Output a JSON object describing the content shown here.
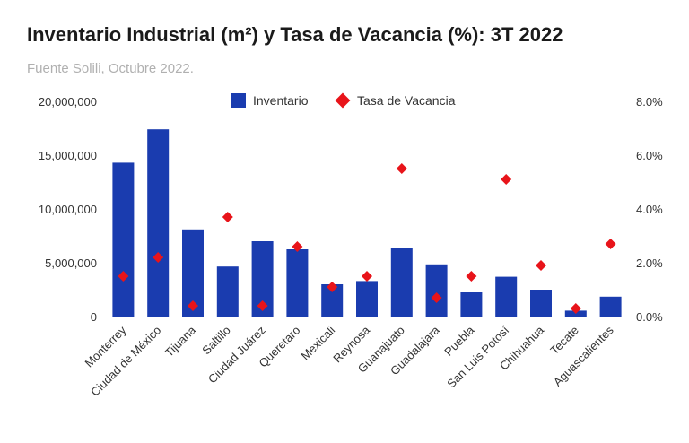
{
  "chart_data": {
    "type": "bar",
    "title": "Inventario Industrial (m²) y Tasa de Vacancia (%): 3T 2022",
    "subtitle": "Fuente Solili, Octubre 2022.",
    "categories": [
      "Monterrey",
      "Ciudad de México",
      "Tijuana",
      "Saltillo",
      "Ciudad Juárez",
      "Queretaro",
      "Mexicali",
      "Reynosa",
      "Guanajuato",
      "Guadalajara",
      "Puebla",
      "San Luis Potosí",
      "Chihuahua",
      "Tecate",
      "Aguascalientes"
    ],
    "series": [
      {
        "name": "Inventario",
        "type": "bar",
        "axis": "left",
        "color": "#1a3caf",
        "values": [
          14300000,
          17400000,
          8100000,
          4650000,
          7000000,
          6250000,
          3000000,
          3300000,
          6350000,
          4850000,
          2250000,
          3700000,
          2500000,
          550000,
          1850000
        ]
      },
      {
        "name": "Tasa de Vacancia",
        "type": "scatter",
        "axis": "right",
        "color": "#e8141a",
        "values": [
          1.5,
          2.2,
          0.4,
          3.7,
          0.4,
          2.6,
          1.1,
          1.5,
          5.5,
          0.7,
          1.5,
          5.1,
          1.9,
          0.3,
          2.7
        ]
      }
    ],
    "y_left": {
      "min": 0,
      "max": 20000000,
      "ticks": [
        "0",
        "5,000,000",
        "10,000,000",
        "15,000,000",
        "20,000,000"
      ]
    },
    "y_right": {
      "min": 0,
      "max": 8,
      "ticks": [
        "0.0%",
        "2.0%",
        "4.0%",
        "6.0%",
        "8.0%"
      ]
    },
    "legend": {
      "position": "top-center",
      "items": [
        "Inventario",
        "Tasa de Vacancia"
      ]
    },
    "grid": false
  }
}
